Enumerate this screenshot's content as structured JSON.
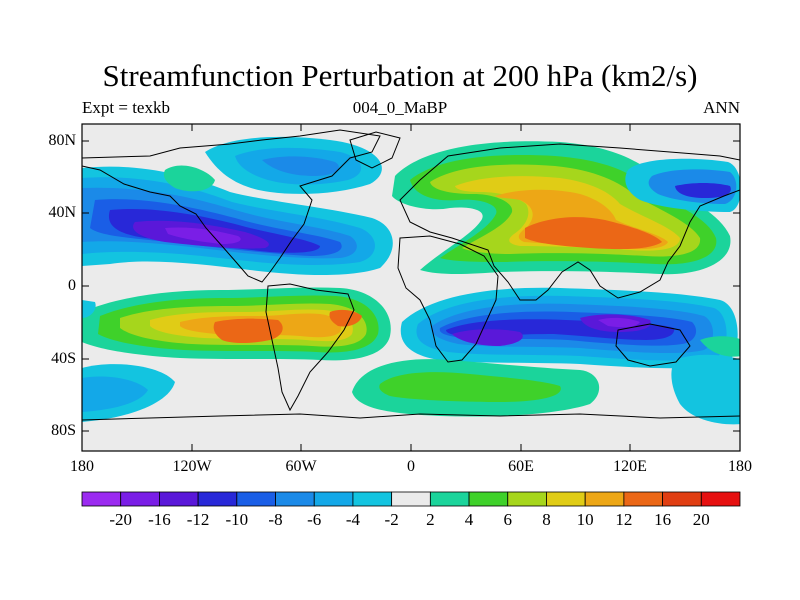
{
  "title": "Streamfunction Perturbation at 200 hPa (km2/s)",
  "subtitle_left": "Expt = texkb",
  "subtitle_center": "004_0_MaBP",
  "subtitle_right": "ANN",
  "lat_labels": [
    "80N",
    "40N",
    "0",
    "40S",
    "80S"
  ],
  "lon_labels": [
    "180",
    "120W",
    "60W",
    "0",
    "60E",
    "120E",
    "180"
  ],
  "colorbar": {
    "labels": [
      "-20",
      "-16",
      "-12",
      "-10",
      "-8",
      "-6",
      "-4",
      "-2",
      "2",
      "4",
      "6",
      "8",
      "10",
      "12",
      "16",
      "20"
    ],
    "colors": [
      "#9b2bf0",
      "#7a1ee6",
      "#5a18d9",
      "#2828d8",
      "#1a5ee6",
      "#1b8ae8",
      "#13a8e8",
      "#13c4e0",
      "#ebebeb",
      "#1bd49b",
      "#3fd12a",
      "#a6d61c",
      "#e0cc16",
      "#eda716",
      "#eb6716",
      "#e03e12",
      "#e61010"
    ]
  },
  "colors": {
    "background": "#ffffff",
    "neutral": "#ebebeb"
  }
}
